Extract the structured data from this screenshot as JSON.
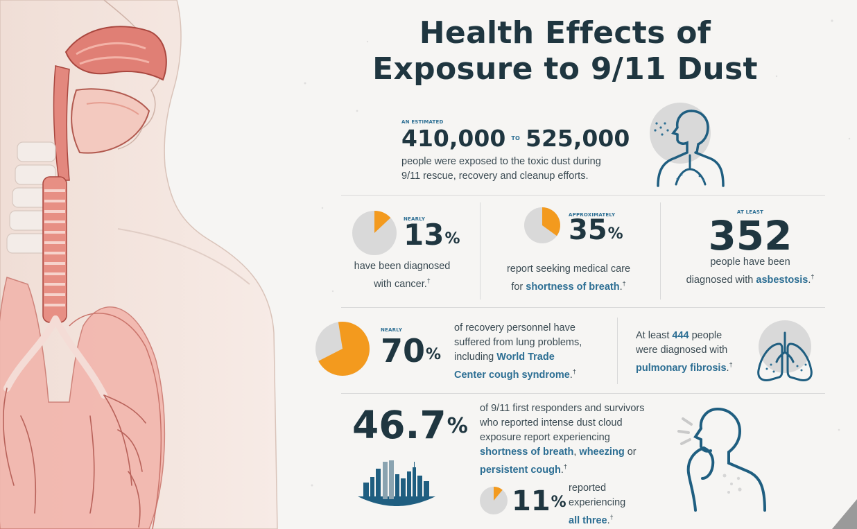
{
  "title": {
    "line1": "Health Effects of",
    "line2": "Exposure to 9/11 Dust"
  },
  "colors": {
    "navy": "#1f3640",
    "blue": "#2c6e93",
    "orange": "#f39a1e",
    "gray": "#d9d9d9"
  },
  "stat_exposed": {
    "eyebrow": "AN ESTIMATED",
    "low": "410,000",
    "to": "TO",
    "high": "525,000",
    "line1": "people were exposed to the toxic dust during",
    "line2": "9/11 rescue, recovery and cleanup efforts.",
    "icon": "person-inhaling-dust-icon"
  },
  "stat_cancer": {
    "eyebrow": "NEARLY",
    "value": "13",
    "unit": "%",
    "fraction": 0.13,
    "line1": "have been diagnosed",
    "line2": "with cancer.",
    "mark": "†"
  },
  "stat_breath": {
    "eyebrow": "APPROXIMATELY",
    "value": "35",
    "unit": "%",
    "fraction": 0.35,
    "line1": "report seeking medical care",
    "line2_pre": "for ",
    "line2_hl": "shortness of breath",
    "line2_post": ".",
    "mark": "†"
  },
  "stat_asbestosis": {
    "eyebrow": "AT LEAST",
    "value": "352",
    "line1": "people have been",
    "line2_pre": "diagnosed with ",
    "line2_hl": "asbestosis",
    "line2_post": ".",
    "mark": "†"
  },
  "stat_lung": {
    "eyebrow": "NEARLY",
    "value": "70",
    "unit": "%",
    "fraction": 0.7,
    "line1": "of recovery personnel have",
    "line2": "suffered from lung problems,",
    "line3_pre": "including ",
    "line3_hl": "World Trade",
    "line4_hl": "Center cough syndrome",
    "line4_post": ".",
    "mark": "†"
  },
  "stat_fibrosis": {
    "line1_pre": "At least ",
    "line1_hl": "444",
    "line1_post": " people",
    "line2": "were diagnosed with",
    "line3_hl": "pulmonary fibrosis",
    "line3_post": ".",
    "mark": "†",
    "icon": "lungs-icon"
  },
  "stat_responders": {
    "value": "46.7",
    "unit": "%",
    "line1": "of 9/11 first responders and survivors",
    "line2": "who reported intense dust cloud",
    "line3": "exposure report experiencing",
    "line4_hl1": "shortness of breath",
    "line4_sep": ", ",
    "line4_hl2": "wheezing",
    "line4_post": " or",
    "line5_hl": "persistent cough",
    "line5_post": ".",
    "mark": "†",
    "icon": "city-skyline-icon"
  },
  "stat_all_three": {
    "value": "11",
    "unit": "%",
    "fraction": 0.11,
    "line1": "reported",
    "line2": "experiencing",
    "line3_hl": "all three",
    "line3_post": ".",
    "mark": "†"
  },
  "coughing_icon": "person-coughing-icon"
}
